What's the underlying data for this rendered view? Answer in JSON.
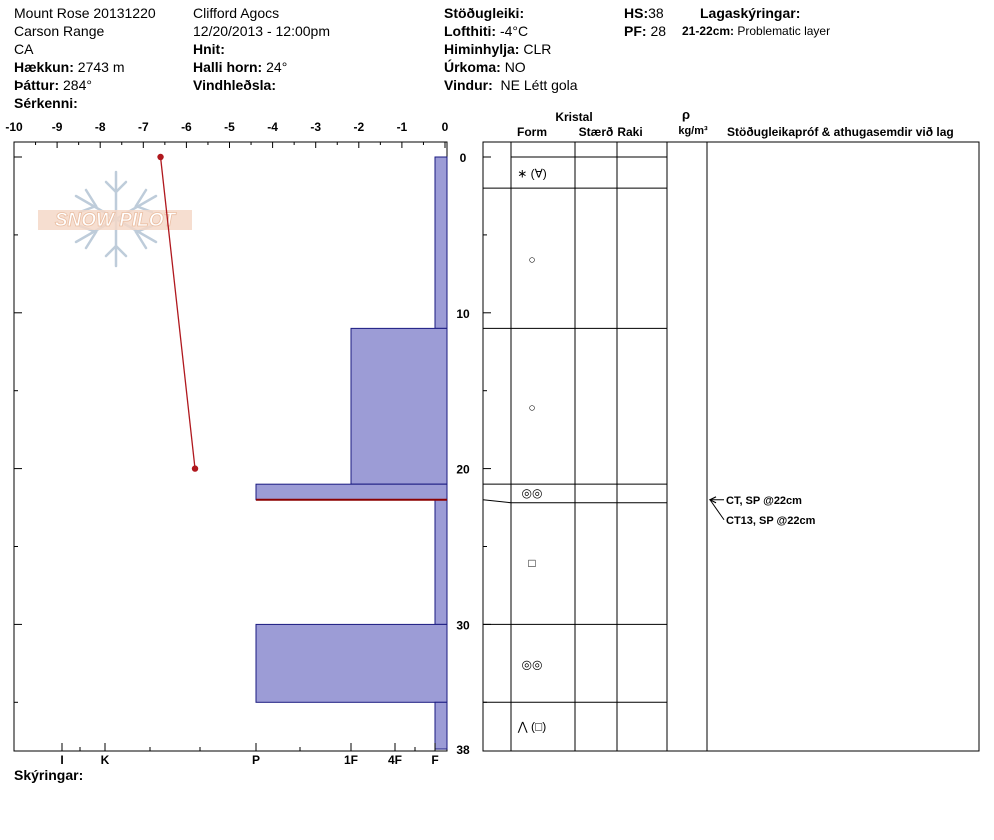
{
  "header": {
    "site": "Mount Rose 20131220",
    "range": "Carson Range",
    "state": "CA",
    "elevation_label": "Hækkun:",
    "elevation_value": "2743 m",
    "aspect_label": "Þáttur:",
    "aspect_value": "284°",
    "features_label": "Sérkenni:",
    "observer": "Clifford Agocs",
    "datetime": "12/20/2013 - 12:00pm",
    "coords_label": "Hnit:",
    "slope_label": "Halli horn:",
    "slope_value": "24°",
    "wind_loading_label": "Vindhleðsla:",
    "stability_label": "Stöðugleiki:",
    "air_temp_label": "Lofthiti:",
    "air_temp_value": "-4°C",
    "sky_label": "Himinhylja:",
    "sky_value": "CLR",
    "precip_label": "Úrkoma:",
    "precip_value": "NO",
    "wind_label": "Vindur:",
    "wind_value": "NE Létt gola",
    "hs_label": "HS:",
    "hs_value": "38",
    "pf_label": "PF:",
    "pf_value": "28",
    "layer_notes_label": "Lagaskýringar:",
    "layer_note_depth": "21-22cm:",
    "layer_note_text": "Problematic layer",
    "comments_label": "Skýringar:"
  },
  "logo_text": "SNOW PILOT",
  "chart_data": {
    "type": "snow_profile",
    "temperature_axis": {
      "ticks": [
        "-10",
        "-9",
        "-8",
        "-7",
        "-6",
        "-5",
        "-4",
        "-3",
        "-2",
        "-1",
        "0"
      ],
      "range": [
        -10,
        0
      ]
    },
    "depth_axis": {
      "ticks": [
        "0",
        "10",
        "20",
        "30",
        "38"
      ],
      "range": [
        0,
        38
      ],
      "unit": "cm"
    },
    "hardness_axis": {
      "ticks": [
        "I",
        "K",
        "P",
        "1F",
        "4F",
        "F"
      ]
    },
    "temperature_profile": [
      {
        "depth": 0,
        "temp": -6.6
      },
      {
        "depth": 20,
        "temp": -5.8
      }
    ],
    "hardness_layers": [
      {
        "top": 0,
        "bottom": 11,
        "hardness": "F"
      },
      {
        "top": 11,
        "bottom": 21,
        "hardness": "1F"
      },
      {
        "top": 21,
        "bottom": 22,
        "hardness": "P"
      },
      {
        "top": 22,
        "bottom": 30,
        "hardness": "F"
      },
      {
        "top": 30,
        "bottom": 35,
        "hardness": "P"
      },
      {
        "top": 35,
        "bottom": 38,
        "hardness": "F"
      }
    ],
    "problem_layer_depth": 22,
    "grain_table": {
      "group_header": "Kristal",
      "columns": [
        "Form",
        "Stærð",
        "Raki"
      ],
      "density_header_symbol": "ρ",
      "density_header_unit": "kg/m³",
      "comments_header": "Stöðugleikapróf & athugasemdir við lag",
      "layers": [
        {
          "top": 0,
          "bottom": 2,
          "form": "∗ (∀)"
        },
        {
          "top": 2,
          "bottom": 11,
          "form": "○"
        },
        {
          "top": 11,
          "bottom": 21,
          "form": "○"
        },
        {
          "top": 21,
          "bottom": 22,
          "form": "◎◎"
        },
        {
          "top": 22,
          "bottom": 30,
          "form": "□"
        },
        {
          "top": 30,
          "bottom": 35,
          "form": "◎◎"
        },
        {
          "top": 35,
          "bottom": 38,
          "form": "⋀ (□)"
        }
      ]
    },
    "stability_tests": [
      {
        "depth": 22,
        "label": "CT, SP @22cm"
      },
      {
        "depth": 22,
        "label": "CT13, SP @22cm"
      }
    ],
    "colors": {
      "hardness_fill": "#9c9cd6",
      "hardness_stroke": "#1a1a80",
      "temperature": "#b0181e",
      "problem": "#8b0000"
    }
  }
}
